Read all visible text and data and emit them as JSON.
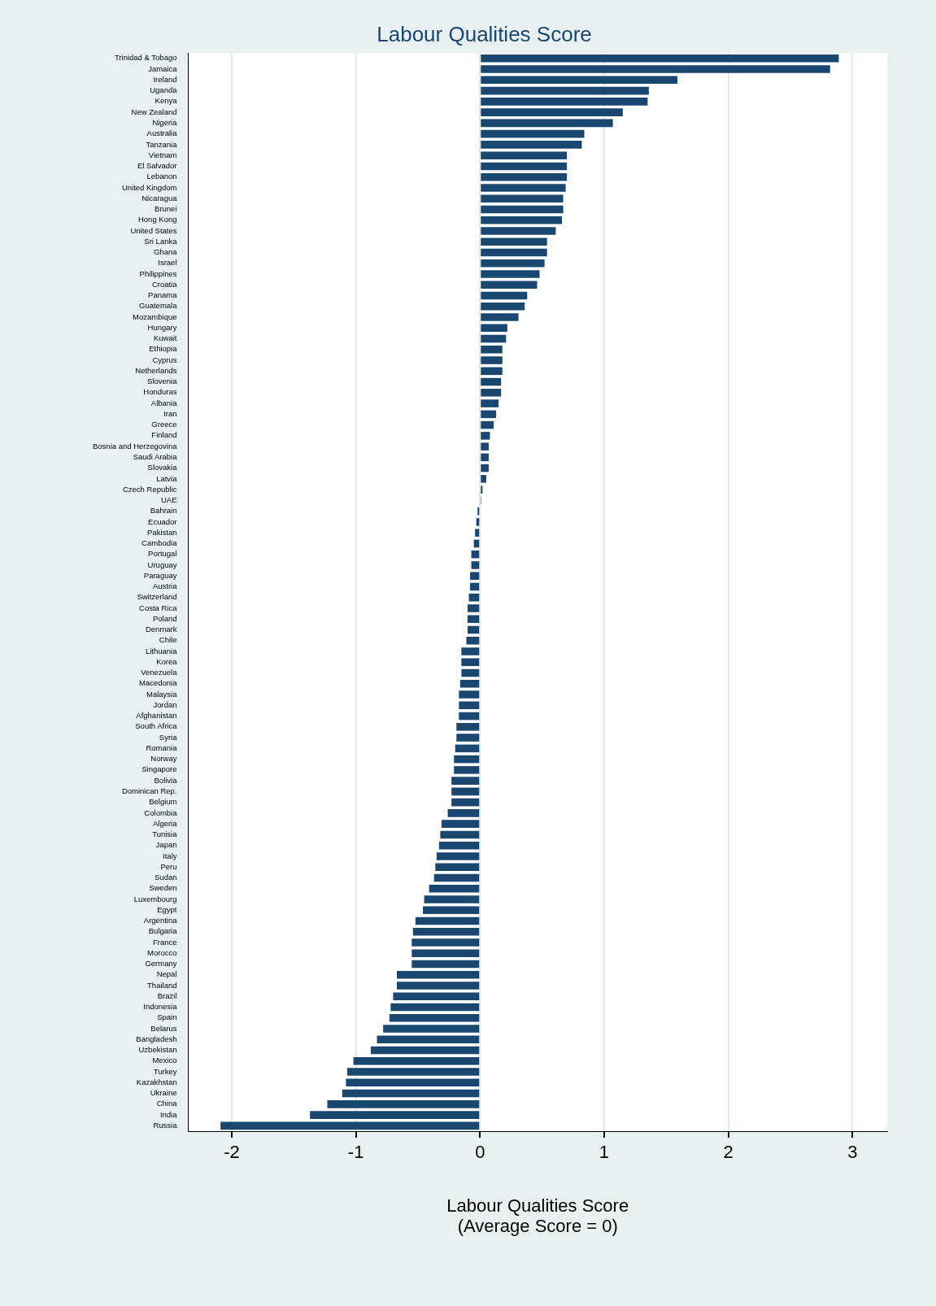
{
  "chart_data": {
    "type": "bar",
    "orientation": "horizontal",
    "title": "Labour Qualities Score",
    "xlabel": "Labour Qualities Score\n(Average Score = 0)",
    "categories": [
      "Trinidad & Tobago",
      "Jamaica",
      "Ireland",
      "Uganda",
      "Kenya",
      "New Zealand",
      "Nigeria",
      "Australia",
      "Tanzania",
      "Vietnam",
      "El Salvador",
      "Lebanon",
      "United Kingdom",
      "Nicaragua",
      "Brunei",
      "Hong Kong",
      "United States",
      "Sri Lanka",
      "Ghana",
      "Israel",
      "Philippines",
      "Croatia",
      "Panama",
      "Guatemala",
      "Mozambique",
      "Hungary",
      "Kuwait",
      "Ethiopia",
      "Cyprus",
      "Netherlands",
      "Slovenia",
      "Honduras",
      "Albania",
      "Iran",
      "Greece",
      "Finland",
      "Bosnia and Herzegovina",
      "Saudi Arabia",
      "Slovakia",
      "Latvia",
      "Czech Republic",
      "UAE",
      "Bahrain",
      "Ecuador",
      "Pakistan",
      "Cambodia",
      "Portugal",
      "Uruguay",
      "Paraguay",
      "Austria",
      "Switzerland",
      "Costa Rica",
      "Poland",
      "Denmark",
      "Chile",
      "Lithuania",
      "Korea",
      "Venezuela",
      "Macedonia",
      "Malaysia",
      "Jordan",
      "Afghanistan",
      "South Africa",
      "Syria",
      "Romania",
      "Norway",
      "Singapore",
      "Bolivia",
      "Dominican Rep.",
      "Belgium",
      "Colombia",
      "Algeria",
      "Tunisia",
      "Japan",
      "Italy",
      "Peru",
      "Sudan",
      "Sweden",
      "Luxembourg",
      "Egypt",
      "Argentina",
      "Bulgaria",
      "France",
      "Morocco",
      "Germany",
      "Nepal",
      "Thailand",
      "Brazil",
      "Indonesia",
      "Spain",
      "Belarus",
      "Bangladesh",
      "Uzbekistan",
      "Mexico",
      "Turkey",
      "Kazakhstan",
      "Ukraine",
      "China",
      "India",
      "Russia"
    ],
    "values": [
      2.89,
      2.82,
      1.59,
      1.36,
      1.35,
      1.15,
      1.07,
      0.84,
      0.82,
      0.7,
      0.7,
      0.7,
      0.69,
      0.67,
      0.67,
      0.66,
      0.61,
      0.54,
      0.54,
      0.52,
      0.48,
      0.46,
      0.38,
      0.36,
      0.31,
      0.22,
      0.21,
      0.18,
      0.18,
      0.18,
      0.17,
      0.17,
      0.15,
      0.13,
      0.11,
      0.08,
      0.07,
      0.07,
      0.07,
      0.05,
      0.02,
      0.01,
      -0.02,
      -0.03,
      -0.04,
      -0.05,
      -0.07,
      -0.07,
      -0.08,
      -0.08,
      -0.09,
      -0.1,
      -0.1,
      -0.1,
      -0.11,
      -0.15,
      -0.15,
      -0.15,
      -0.16,
      -0.17,
      -0.17,
      -0.17,
      -0.19,
      -0.19,
      -0.2,
      -0.21,
      -0.21,
      -0.23,
      -0.23,
      -0.23,
      -0.26,
      -0.31,
      -0.32,
      -0.33,
      -0.35,
      -0.36,
      -0.37,
      -0.41,
      -0.45,
      -0.46,
      -0.52,
      -0.54,
      -0.55,
      -0.55,
      -0.55,
      -0.67,
      -0.67,
      -0.7,
      -0.72,
      -0.73,
      -0.78,
      -0.83,
      -0.88,
      -1.02,
      -1.07,
      -1.08,
      -1.11,
      -1.23,
      -1.37,
      -2.09
    ],
    "color": "#1a476f",
    "xlim": [
      -2.35,
      3.28
    ],
    "xticks": [
      -2,
      -1,
      0,
      1,
      2,
      3
    ],
    "grid": "x"
  }
}
